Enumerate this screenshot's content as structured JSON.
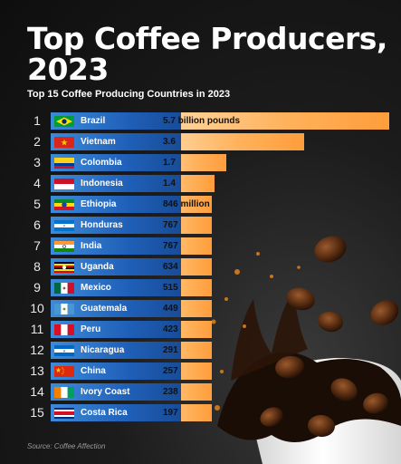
{
  "page": {
    "title": "Top Coffee Producers, 2023",
    "subtitle": "Top 15 Coffee Producing Countries in 2023",
    "source": "Source: Coffee Affection"
  },
  "colors": {
    "background": "#161616",
    "label_box": "#1f5fb8",
    "bar": "#ffb25c",
    "bar_light": "#ffd9a6"
  },
  "chart_data": {
    "type": "bar",
    "orientation": "horizontal",
    "unit_note": "first value in billion pounds; others in million pounds",
    "rows": [
      {
        "rank": "1",
        "country": "Brazil",
        "flag": "brazil-flag",
        "label": "5.7 billion pounds",
        "value": 5700
      },
      {
        "rank": "2",
        "country": "Vietnam",
        "flag": "vietnam-flag",
        "label": "3.6",
        "value": 3600
      },
      {
        "rank": "3",
        "country": "Colombia",
        "flag": "colombia-flag",
        "label": "1.7",
        "value": 1700
      },
      {
        "rank": "4",
        "country": "Indonesia",
        "flag": "indonesia-flag",
        "label": "1.4",
        "value": 1400
      },
      {
        "rank": "5",
        "country": "Ethiopia",
        "flag": "ethiopia-flag",
        "label": "846 million",
        "value": 846
      },
      {
        "rank": "6",
        "country": "Honduras",
        "flag": "honduras-flag",
        "label": "767",
        "value": 767
      },
      {
        "rank": "7",
        "country": "India",
        "flag": "india-flag",
        "label": "767",
        "value": 767
      },
      {
        "rank": "8",
        "country": "Uganda",
        "flag": "uganda-flag",
        "label": "634",
        "value": 634
      },
      {
        "rank": "9",
        "country": "Mexico",
        "flag": "mexico-flag",
        "label": "515",
        "value": 515
      },
      {
        "rank": "10",
        "country": "Guatemala",
        "flag": "guatemala-flag",
        "label": "449",
        "value": 449
      },
      {
        "rank": "11",
        "country": "Peru",
        "flag": "peru-flag",
        "label": "423",
        "value": 423
      },
      {
        "rank": "12",
        "country": "Nicaragua",
        "flag": "nicaragua-flag",
        "label": "291",
        "value": 291
      },
      {
        "rank": "13",
        "country": "China",
        "flag": "china-flag",
        "label": "257",
        "value": 257
      },
      {
        "rank": "14",
        "country": "Ivory Coast",
        "flag": "ivory-coast-flag",
        "label": "238",
        "value": 238
      },
      {
        "rank": "15",
        "country": "Costa Rica",
        "flag": "costa-rica-flag",
        "label": "197",
        "value": 197
      }
    ]
  }
}
